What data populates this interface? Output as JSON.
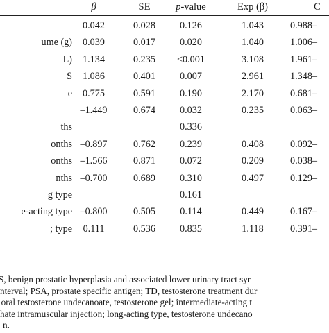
{
  "table": {
    "header": {
      "beta": "β",
      "se": "SE",
      "p_italic": "p",
      "p_rest": "-value",
      "exp": "Exp (β)",
      "ci": "C"
    },
    "rows": [
      {
        "label": "",
        "beta": "0.042",
        "se": "0.028",
        "p": "0.126",
        "exp": "1.043",
        "ci": "0.988–"
      },
      {
        "label": "ume (g)",
        "beta": "0.039",
        "se": "0.017",
        "p": "0.020",
        "exp": "1.040",
        "ci": "1.006–"
      },
      {
        "label": "L)",
        "beta": "1.134",
        "se": "0.235",
        "p": "<0.001",
        "exp": "3.108",
        "ci": "1.961–"
      },
      {
        "label": "S",
        "beta": "1.086",
        "se": "0.401",
        "p": "0.007",
        "exp": "2.961",
        "ci": "1.348–"
      },
      {
        "label": "e",
        "beta": "0.775",
        "se": "0.591",
        "p": "0.190",
        "exp": "2.170",
        "ci": "0.681–"
      },
      {
        "label": "",
        "beta": "–1.449",
        "se": "0.674",
        "p": "0.032",
        "exp": "0.235",
        "ci": "0.063–"
      },
      {
        "label": "ths",
        "beta": "",
        "se": "",
        "p": "0.336",
        "exp": "",
        "ci": ""
      },
      {
        "label": "onths",
        "beta": "–0.897",
        "se": "0.762",
        "p": "0.239",
        "exp": "0.408",
        "ci": "0.092–"
      },
      {
        "label": "onths",
        "beta": "–1.566",
        "se": "0.871",
        "p": "0.072",
        "exp": "0.209",
        "ci": "0.038–"
      },
      {
        "label": "nths",
        "beta": "–0.700",
        "se": "0.689",
        "p": "0.310",
        "exp": "0.497",
        "ci": "0.129–"
      },
      {
        "label": "g type",
        "beta": "",
        "se": "",
        "p": "0.161",
        "exp": "",
        "ci": ""
      },
      {
        "label": "e-acting type",
        "beta": "–0.800",
        "se": "0.505",
        "p": "0.114",
        "exp": "0.449",
        "ci": "0.167–"
      },
      {
        "label": "; type",
        "beta": "0.111",
        "se": "0.536",
        "p": "0.835",
        "exp": "1.118",
        "ci": "0.391–"
      }
    ]
  },
  "footnote": {
    "lines": [
      "S, benign prostatic hyperplasia and associated lower urinary tract syr",
      "nterval; PSA, prostate specific antigen; TD, testosterone treatment dur",
      ", oral testosterone undecanoate, testosterone gel; intermediate-acting t",
      "hate intramuscular injection; long-acting type, testosterone undecano",
      "n."
    ]
  }
}
